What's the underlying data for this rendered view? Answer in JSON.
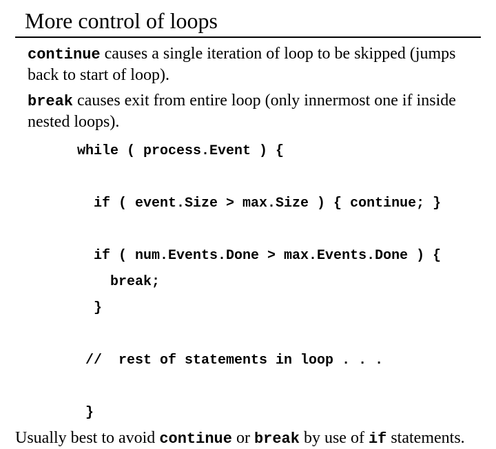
{
  "title": "More control of loops",
  "para1": {
    "kw": "continue",
    "rest": " causes a single iteration of loop to be skipped (jumps back to start of loop)."
  },
  "para2": {
    "kw": "break",
    "rest": " causes exit from entire loop  (only innermost one if inside nested loops)."
  },
  "code": "while ( process.Event ) {\n\n  if ( event.Size > max.Size ) { continue; }\n\n  if ( num.Events.Done > max.Events.Done ) {\n    break;\n  }\n\n //  rest of statements in loop . . .\n\n }",
  "footer": {
    "t1": "Usually best to avoid ",
    "kw1": "continue",
    "t2": " or ",
    "kw2": "break",
    "t3": " by use of ",
    "kw3": "if",
    "t4": " statements."
  }
}
